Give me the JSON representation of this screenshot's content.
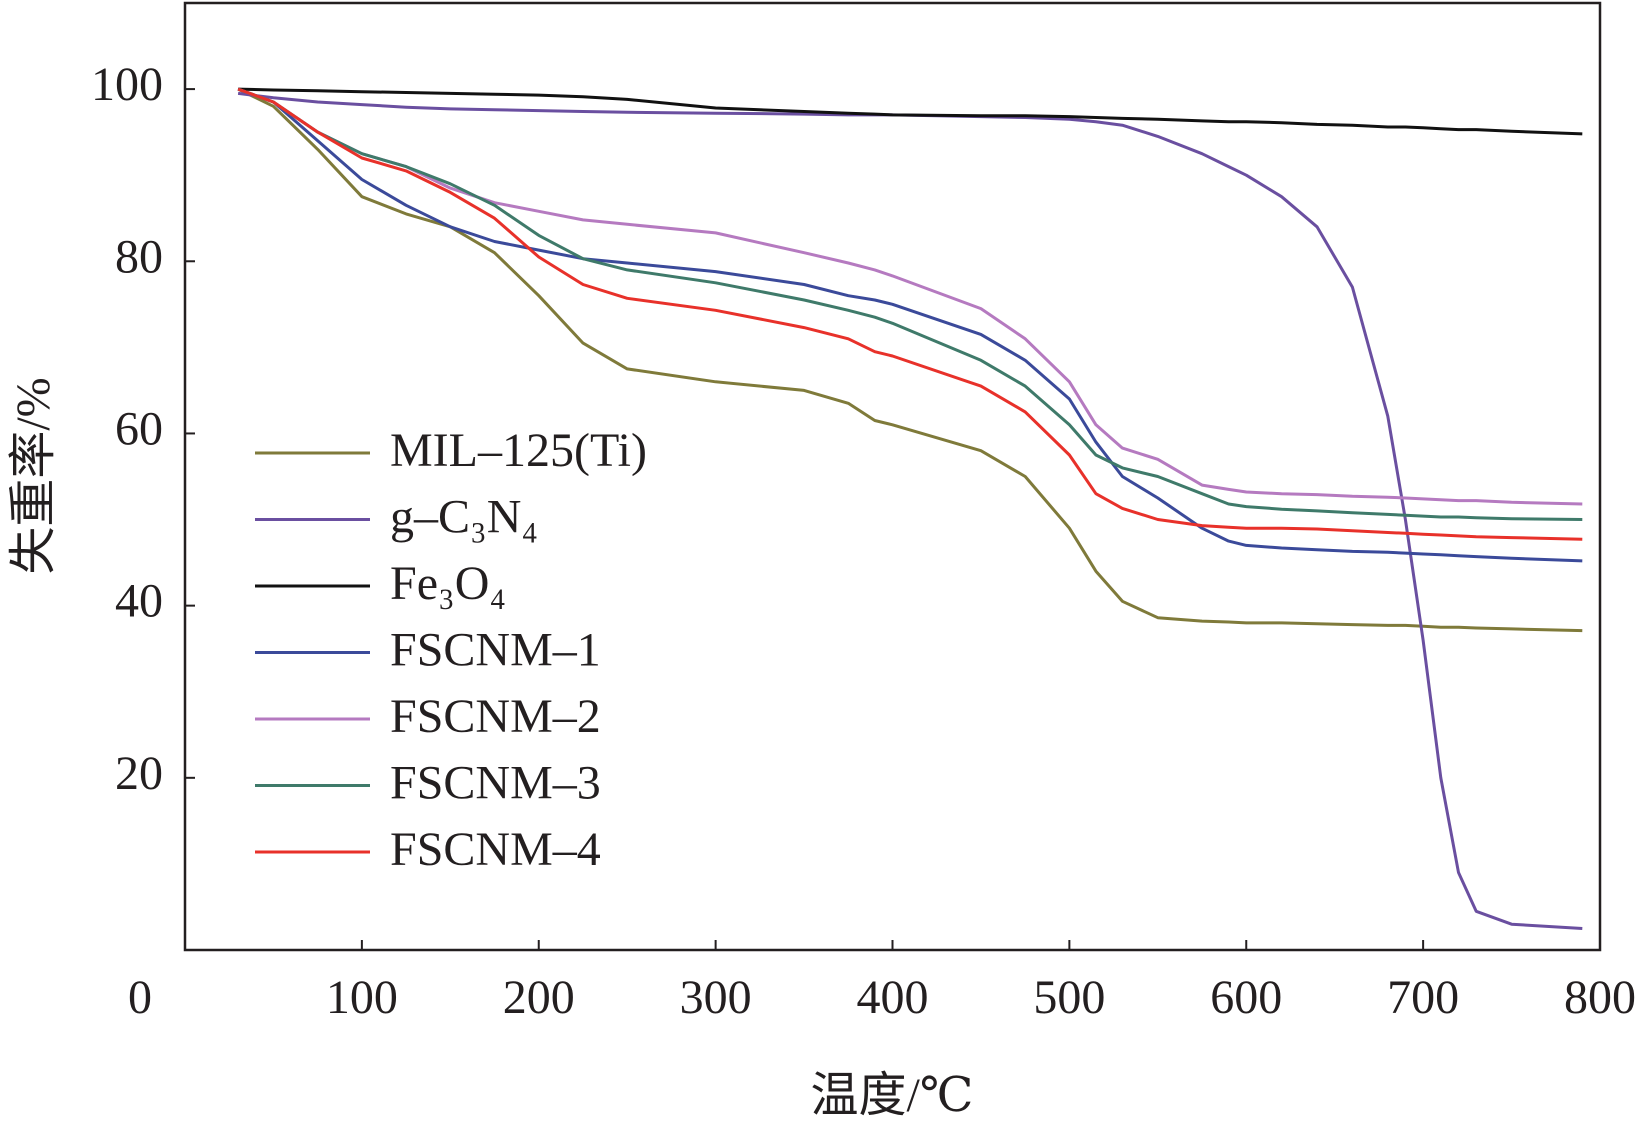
{
  "chart_data": {
    "type": "line",
    "xlabel": "温度/℃",
    "ylabel": "失重率/%",
    "xlim": [
      0,
      800
    ],
    "ylim": [
      0,
      110
    ],
    "xticks": [
      0,
      100,
      200,
      300,
      400,
      500,
      600,
      700,
      800
    ],
    "yticks": [
      20,
      40,
      60,
      80,
      100
    ],
    "legend": "lower-left",
    "x": [
      30,
      50,
      75,
      100,
      125,
      150,
      175,
      200,
      225,
      250,
      300,
      350,
      375,
      390,
      400,
      450,
      475,
      500,
      515,
      530,
      550,
      575,
      590,
      600,
      620,
      640,
      660,
      680,
      690,
      700,
      710,
      720,
      730,
      750,
      790
    ],
    "series": [
      {
        "name": "MIL–125(Ti)",
        "color": "#7f7a3a",
        "values": [
          100,
          98,
          93,
          87.5,
          85.5,
          84,
          81,
          76,
          70.5,
          67.5,
          66,
          65,
          63.5,
          61.5,
          61,
          58,
          55,
          49,
          44,
          40.5,
          38.6,
          38.2,
          38.1,
          38,
          38,
          37.9,
          37.8,
          37.7,
          37.7,
          37.6,
          37.5,
          37.5,
          37.4,
          37.3,
          37.1
        ]
      },
      {
        "name": "g–C₃N₄",
        "color": "#6a4fa0",
        "values": [
          99.5,
          99,
          98.5,
          98.2,
          97.9,
          97.7,
          97.6,
          97.5,
          97.4,
          97.3,
          97.2,
          97.1,
          97,
          97,
          97,
          96.8,
          96.7,
          96.5,
          96.2,
          95.8,
          94.5,
          92.5,
          91,
          90,
          87.5,
          84,
          77,
          62,
          50,
          36,
          20,
          9,
          4.5,
          3,
          2.5
        ]
      },
      {
        "name": "Fe₃O₄",
        "color": "#111111",
        "values": [
          100,
          99.9,
          99.8,
          99.7,
          99.6,
          99.5,
          99.4,
          99.3,
          99.1,
          98.8,
          97.8,
          97.4,
          97.2,
          97.1,
          97,
          96.9,
          96.9,
          96.8,
          96.7,
          96.6,
          96.5,
          96.3,
          96.2,
          96.2,
          96.1,
          95.9,
          95.8,
          95.6,
          95.6,
          95.5,
          95.4,
          95.3,
          95.3,
          95.1,
          94.8
        ]
      },
      {
        "name": "FSCNM–1",
        "color": "#3b4a9a",
        "values": [
          100,
          98.5,
          94,
          89.5,
          86.5,
          84,
          82.3,
          81.3,
          80.3,
          79.8,
          78.8,
          77.3,
          76,
          75.5,
          75,
          71.5,
          68.5,
          64,
          59,
          55,
          52.5,
          49,
          47.5,
          47,
          46.7,
          46.5,
          46.3,
          46.2,
          46.1,
          46,
          45.9,
          45.8,
          45.7,
          45.5,
          45.2
        ]
      },
      {
        "name": "FSCNM–2",
        "color": "#b57ac0",
        "values": [
          100,
          98.5,
          95,
          92.5,
          91,
          88.5,
          86.8,
          85.8,
          84.8,
          84.3,
          83.3,
          81,
          79.8,
          79,
          78.3,
          74.5,
          71,
          66,
          61,
          58.3,
          57,
          54,
          53.5,
          53.2,
          53,
          52.9,
          52.7,
          52.6,
          52.5,
          52.4,
          52.3,
          52.2,
          52.2,
          52,
          51.8
        ]
      },
      {
        "name": "FSCNM–3",
        "color": "#3f7a6a",
        "values": [
          100,
          98.5,
          95,
          92.5,
          91,
          89,
          86.5,
          83,
          80.3,
          79,
          77.5,
          75.5,
          74.3,
          73.5,
          72.8,
          68.5,
          65.5,
          61,
          57.5,
          56,
          55,
          53,
          51.8,
          51.5,
          51.2,
          51,
          50.8,
          50.6,
          50.5,
          50.4,
          50.3,
          50.3,
          50.2,
          50.1,
          50
        ]
      },
      {
        "name": "FSCNM–4",
        "color": "#e8312a",
        "values": [
          100,
          98.5,
          95,
          92,
          90.5,
          88,
          85,
          80.5,
          77.3,
          75.7,
          74.3,
          72.3,
          71,
          69.5,
          69,
          65.5,
          62.5,
          57.5,
          53,
          51.3,
          50,
          49.3,
          49.1,
          49,
          49,
          48.9,
          48.7,
          48.5,
          48.4,
          48.3,
          48.2,
          48.1,
          48,
          47.9,
          47.7
        ]
      }
    ]
  }
}
